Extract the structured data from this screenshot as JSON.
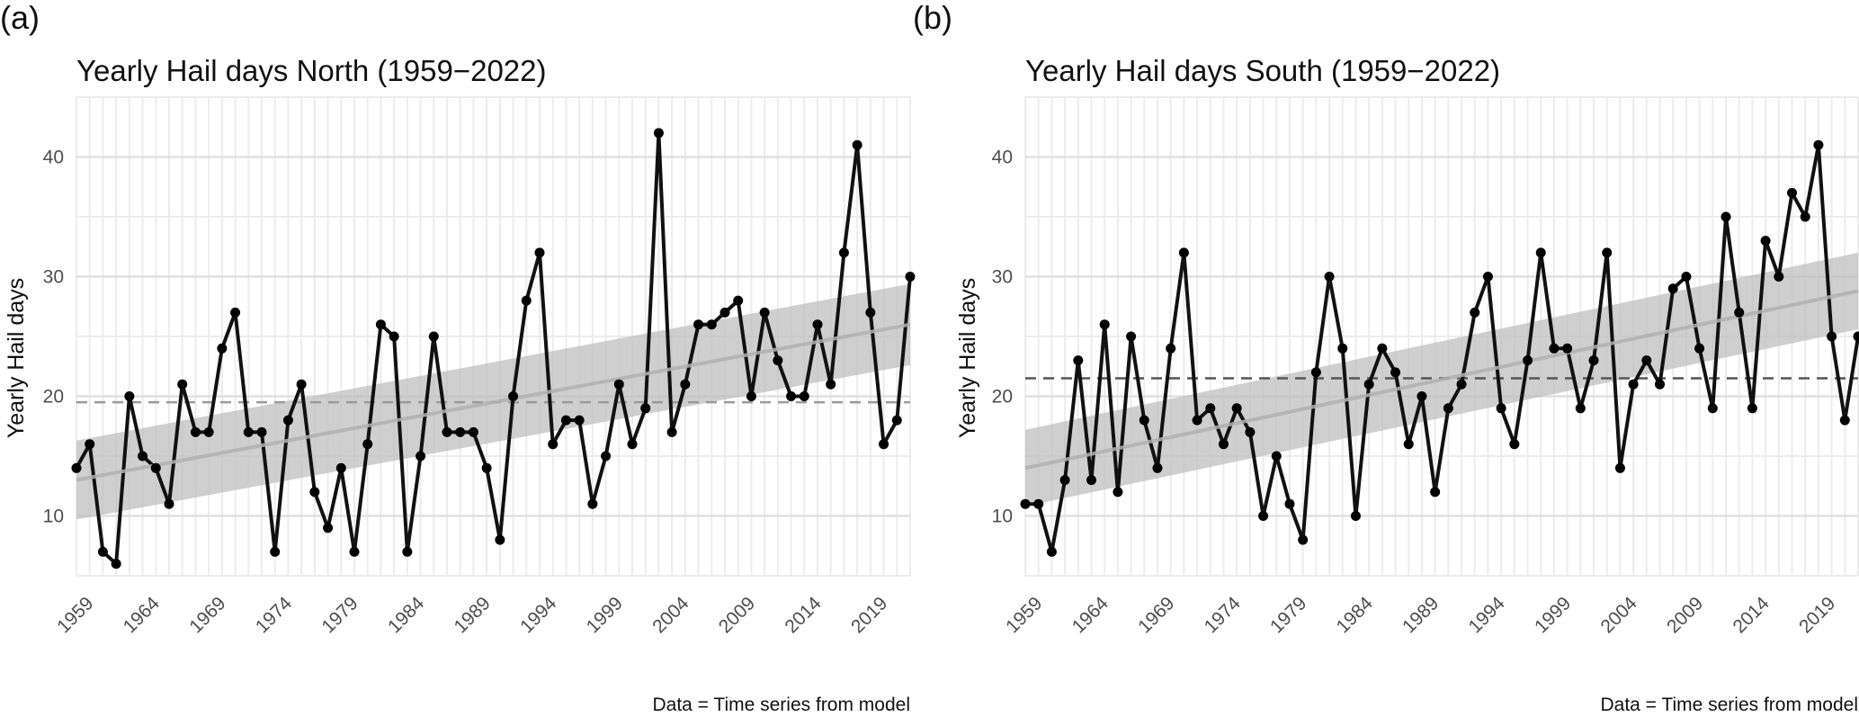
{
  "chart_data": [
    {
      "type": "line",
      "panel_letter": "(a)",
      "title": "Yearly Hail days North (1959−2022)",
      "xlabel": "",
      "ylabel": "Yearly Hail days",
      "caption": "Data = Time series from model",
      "xlim": [
        1959,
        2022
      ],
      "ylim": [
        5,
        45
      ],
      "yticks": [
        10,
        20,
        30,
        40
      ],
      "ytick_labels": [
        "10",
        "20",
        "30",
        "40"
      ],
      "xticks": [
        1959,
        1964,
        1969,
        1974,
        1979,
        1984,
        1989,
        1994,
        1999,
        2004,
        2009,
        2014,
        2019
      ],
      "xtick_labels": [
        "1959",
        "1964",
        "1969",
        "1974",
        "1979",
        "1984",
        "1989",
        "1994",
        "1999",
        "2004",
        "2009",
        "2014",
        "2019"
      ],
      "grid": true,
      "x": [
        1959,
        1960,
        1961,
        1962,
        1963,
        1964,
        1965,
        1966,
        1967,
        1968,
        1969,
        1970,
        1971,
        1972,
        1973,
        1974,
        1975,
        1976,
        1977,
        1978,
        1979,
        1980,
        1981,
        1982,
        1983,
        1984,
        1985,
        1986,
        1987,
        1988,
        1989,
        1990,
        1991,
        1992,
        1993,
        1994,
        1995,
        1996,
        1997,
        1998,
        1999,
        2000,
        2001,
        2002,
        2003,
        2004,
        2005,
        2006,
        2007,
        2008,
        2009,
        2010,
        2011,
        2012,
        2013,
        2014,
        2015,
        2016,
        2017,
        2018,
        2019,
        2020,
        2021,
        2022
      ],
      "series": [
        {
          "name": "Yearly Hail days",
          "values": [
            14,
            16,
            7,
            6,
            20,
            15,
            14,
            11,
            21,
            17,
            17,
            24,
            27,
            17,
            17,
            7,
            18,
            21,
            12,
            9,
            14,
            7,
            16,
            26,
            25,
            7,
            15,
            25,
            17,
            17,
            17,
            14,
            8,
            20,
            28,
            32,
            16,
            18,
            18,
            11,
            15,
            21,
            16,
            19,
            42,
            17,
            21,
            26,
            26,
            27,
            28,
            20,
            27,
            23,
            20,
            20,
            26,
            21,
            32,
            41,
            27,
            16,
            18,
            30
          ]
        }
      ],
      "mean_line": 19.5,
      "trend": {
        "start": 13.0,
        "end": 26.0
      },
      "confidence_band": {
        "start_low": 9.7,
        "start_high": 16.3,
        "end_low": 22.6,
        "end_high": 29.4
      },
      "colors": {
        "points": "#000000",
        "line": "#111111",
        "trend": "#b0b0b0",
        "band": "#bfbfbf",
        "mean": "#9a9a9a"
      }
    },
    {
      "type": "line",
      "panel_letter": "(b)",
      "title": "Yearly Hail days South (1959−2022)",
      "xlabel": "",
      "ylabel": "Yearly Hail days",
      "caption": "Data = Time series from model",
      "xlim": [
        1959,
        2022
      ],
      "ylim": [
        5,
        45
      ],
      "yticks": [
        10,
        20,
        30,
        40
      ],
      "ytick_labels": [
        "10",
        "20",
        "30",
        "40"
      ],
      "xticks": [
        1959,
        1964,
        1969,
        1974,
        1979,
        1984,
        1989,
        1994,
        1999,
        2004,
        2009,
        2014,
        2019
      ],
      "xtick_labels": [
        "1959",
        "1964",
        "1969",
        "1974",
        "1979",
        "1984",
        "1989",
        "1994",
        "1999",
        "2004",
        "2009",
        "2014",
        "2019"
      ],
      "grid": true,
      "x": [
        1959,
        1960,
        1961,
        1962,
        1963,
        1964,
        1965,
        1966,
        1967,
        1968,
        1969,
        1970,
        1971,
        1972,
        1973,
        1974,
        1975,
        1976,
        1977,
        1978,
        1979,
        1980,
        1981,
        1982,
        1983,
        1984,
        1985,
        1986,
        1987,
        1988,
        1989,
        1990,
        1991,
        1992,
        1993,
        1994,
        1995,
        1996,
        1997,
        1998,
        1999,
        2000,
        2001,
        2002,
        2003,
        2004,
        2005,
        2006,
        2007,
        2008,
        2009,
        2010,
        2011,
        2012,
        2013,
        2014,
        2015,
        2016,
        2017,
        2018,
        2019,
        2020,
        2021,
        2022
      ],
      "series": [
        {
          "name": "Yearly Hail days",
          "values": [
            11,
            11,
            7,
            13,
            23,
            13,
            26,
            12,
            25,
            18,
            14,
            24,
            32,
            18,
            19,
            16,
            19,
            17,
            10,
            15,
            11,
            8,
            22,
            30,
            24,
            10,
            21,
            24,
            22,
            16,
            20,
            12,
            19,
            21,
            27,
            30,
            19,
            16,
            23,
            32,
            24,
            24,
            19,
            23,
            32,
            14,
            21,
            23,
            21,
            29,
            30,
            24,
            19,
            35,
            27,
            19,
            33,
            30,
            37,
            35,
            41,
            25,
            18,
            25
          ]
        }
      ],
      "mean_line": 21.5,
      "trend": {
        "start": 14.0,
        "end": 28.8
      },
      "confidence_band": {
        "start_low": 10.8,
        "start_high": 17.2,
        "end_low": 25.6,
        "end_high": 32.0
      },
      "colors": {
        "points": "#000000",
        "line": "#111111",
        "trend": "#b0b0b0",
        "band": "#bfbfbf",
        "mean": "#555555"
      }
    }
  ]
}
